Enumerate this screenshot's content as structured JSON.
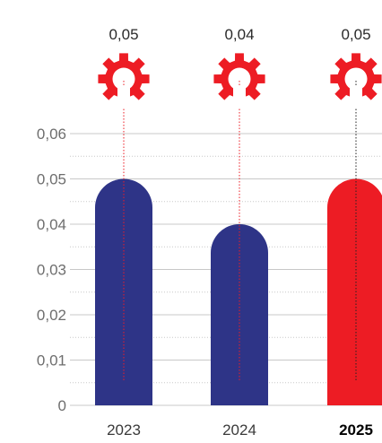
{
  "chart_data": {
    "type": "bar",
    "categories": [
      "2023",
      "2024",
      "2025"
    ],
    "values": [
      0.05,
      0.04,
      0.05
    ],
    "value_labels": [
      "0,05",
      "0,04",
      "0,05"
    ],
    "highlight_category": "2025",
    "ylim": [
      0,
      0.06
    ],
    "yticks": [
      0,
      0.01,
      0.02,
      0.03,
      0.04,
      0.05,
      0.06
    ],
    "ytick_labels": [
      "0",
      "0,01",
      "0,02",
      "0,03",
      "0,04",
      "0,05",
      "0,06"
    ],
    "title": "",
    "xlabel": "",
    "ylabel": "",
    "grid": true,
    "colors": {
      "bar": "#2e3487",
      "bar_highlight": "#ed1c24",
      "icon": "#ed1c24",
      "guide": "#ed1c24",
      "guide_highlight": "#222222",
      "grid": "#c8c8c8"
    },
    "icon": "gear-half-icon"
  }
}
